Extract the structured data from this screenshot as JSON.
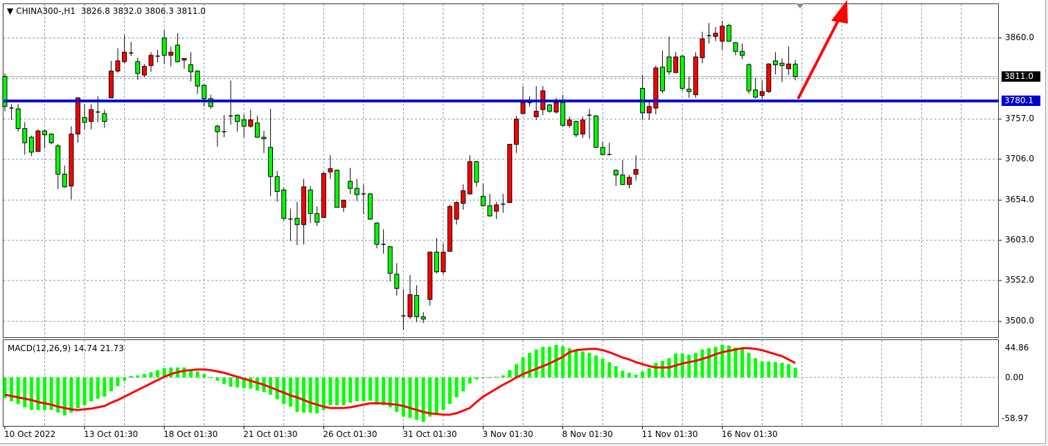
{
  "header": {
    "symbol": "CHINA300-,H1",
    "open": "3826.8",
    "high": "3832.0",
    "low": "3806.3",
    "close": "3811.0"
  },
  "price_axis": {
    "labels": [
      "3860.0",
      "3757.0",
      "3706.0",
      "3654.0",
      "3603.0",
      "3552.0",
      "3500.0"
    ],
    "current_price": "3811.0",
    "horizontal_line": "3780.1"
  },
  "macd": {
    "title": "MACD(12,26,9)",
    "main_value": "14.74",
    "signal_value": "21.73",
    "axis_labels": [
      "44.86",
      "0.00",
      "-58.97"
    ]
  },
  "time_axis": {
    "labels": [
      "10 Oct 2022",
      "13 Oct 01:30",
      "18 Oct 01:30",
      "21 Oct 01:30",
      "26 Oct 01:30",
      "31 Oct 01:30",
      "3 Nov 01:30",
      "8 Nov 01:30",
      "11 Nov 01:30",
      "16 Nov 01:30"
    ]
  },
  "colors": {
    "bull_candle": "#ff0000",
    "bear_candle": "#00ff00",
    "horizontal_line": "#0000d0",
    "arrow": "#ff0000",
    "macd_histogram": "#00ff00",
    "macd_signal": "#ff0000",
    "grid": "#8090a0"
  },
  "chart_data": [
    {
      "type": "candlestick",
      "title": "CHINA300-,H1",
      "ylim": [
        3479,
        3903
      ],
      "grid": true,
      "horizontal_line": 3780.1,
      "current_price": 3811.0,
      "candles_ohlc": [
        [
          3811,
          3815,
          3767,
          3773
        ],
        [
          3771,
          3776,
          3756,
          3771
        ],
        [
          3770,
          3776,
          3741,
          3745
        ],
        [
          3745,
          3753,
          3712,
          3727
        ],
        [
          3734,
          3736,
          3710,
          3715
        ],
        [
          3716,
          3744,
          3716,
          3742
        ],
        [
          3742,
          3744,
          3720,
          3737
        ],
        [
          3738,
          3739,
          3725,
          3727
        ],
        [
          3723,
          3725,
          3668,
          3687
        ],
        [
          3687,
          3698,
          3670,
          3671
        ],
        [
          3672,
          3748,
          3655,
          3738
        ],
        [
          3738,
          3785,
          3727,
          3784
        ],
        [
          3759,
          3776,
          3744,
          3753
        ],
        [
          3754,
          3776,
          3744,
          3769
        ],
        [
          3766,
          3786,
          3753,
          3766
        ],
        [
          3764,
          3769,
          3746,
          3754
        ],
        [
          3784,
          3831,
          3784,
          3818
        ],
        [
          3818,
          3847,
          3816,
          3831
        ],
        [
          3830,
          3864,
          3828,
          3842
        ],
        [
          3841,
          3855,
          3837,
          3841
        ],
        [
          3830,
          3835,
          3807,
          3815
        ],
        [
          3813,
          3827,
          3810,
          3824
        ],
        [
          3825,
          3842,
          3817,
          3838
        ],
        [
          3837,
          3845,
          3829,
          3837
        ],
        [
          3860,
          3870,
          3827,
          3838
        ],
        [
          3838,
          3849,
          3824,
          3842
        ],
        [
          3851,
          3866,
          3829,
          3830
        ],
        [
          3832,
          3834,
          3821,
          3834
        ],
        [
          3826,
          3842,
          3805,
          3817
        ],
        [
          3818,
          3819,
          3789,
          3799
        ],
        [
          3800,
          3801,
          3773,
          3783
        ],
        [
          3783,
          3788,
          3770,
          3773
        ],
        [
          3748,
          3750,
          3722,
          3741
        ],
        [
          3741,
          3762,
          3734,
          3741
        ],
        [
          3761,
          3806,
          3750,
          3761
        ],
        [
          3762,
          3763,
          3741,
          3754
        ],
        [
          3756,
          3763,
          3734,
          3748
        ],
        [
          3748,
          3769,
          3746,
          3756
        ],
        [
          3752,
          3761,
          3733,
          3734
        ],
        [
          3734,
          3742,
          3714,
          3732
        ],
        [
          3721,
          3770,
          3659,
          3684
        ],
        [
          3684,
          3691,
          3652,
          3665
        ],
        [
          3667,
          3670,
          3628,
          3631
        ],
        [
          3630,
          3643,
          3602,
          3630
        ],
        [
          3631,
          3652,
          3597,
          3623
        ],
        [
          3623,
          3681,
          3598,
          3671
        ],
        [
          3667,
          3672,
          3625,
          3637
        ],
        [
          3637,
          3646,
          3621,
          3626
        ],
        [
          3632,
          3690,
          3632,
          3688
        ],
        [
          3690,
          3711,
          3681,
          3694
        ],
        [
          3692,
          3693,
          3645,
          3645
        ],
        [
          3645,
          3654,
          3639,
          3654
        ],
        [
          3678,
          3695,
          3662,
          3669
        ],
        [
          3669,
          3681,
          3653,
          3661
        ],
        [
          3662,
          3674,
          3636,
          3662
        ],
        [
          3662,
          3663,
          3629,
          3630
        ],
        [
          3625,
          3626,
          3593,
          3598
        ],
        [
          3598,
          3617,
          3586,
          3598
        ],
        [
          3595,
          3596,
          3551,
          3561
        ],
        [
          3560,
          3574,
          3533,
          3542
        ],
        [
          3507,
          3541,
          3489,
          3507
        ],
        [
          3506,
          3559,
          3503,
          3534
        ],
        [
          3533,
          3546,
          3499,
          3506
        ],
        [
          3506,
          3512,
          3498,
          3503
        ],
        [
          3528,
          3589,
          3520,
          3588
        ],
        [
          3588,
          3606,
          3561,
          3563
        ],
        [
          3563,
          3599,
          3560,
          3588
        ],
        [
          3589,
          3648,
          3589,
          3646
        ],
        [
          3630,
          3653,
          3623,
          3651
        ],
        [
          3650,
          3674,
          3642,
          3666
        ],
        [
          3662,
          3711,
          3661,
          3703
        ],
        [
          3703,
          3704,
          3671,
          3677
        ],
        [
          3659,
          3675,
          3646,
          3647
        ],
        [
          3647,
          3662,
          3633,
          3634
        ],
        [
          3640,
          3652,
          3630,
          3648
        ],
        [
          3648,
          3662,
          3638,
          3649
        ],
        [
          3651,
          3725,
          3651,
          3725
        ],
        [
          3725,
          3761,
          3714,
          3757
        ],
        [
          3764,
          3799,
          3763,
          3778
        ],
        [
          3778,
          3786,
          3773,
          3778
        ],
        [
          3760,
          3799,
          3756,
          3767
        ],
        [
          3769,
          3799,
          3762,
          3793
        ],
        [
          3775,
          3776,
          3765,
          3767
        ],
        [
          3766,
          3784,
          3764,
          3778
        ],
        [
          3778,
          3788,
          3747,
          3749
        ],
        [
          3749,
          3760,
          3746,
          3756
        ],
        [
          3754,
          3755,
          3734,
          3737
        ],
        [
          3738,
          3760,
          3733,
          3756
        ],
        [
          3762,
          3770,
          3732,
          3762
        ],
        [
          3761,
          3762,
          3720,
          3721
        ],
        [
          3721,
          3728,
          3711,
          3712
        ],
        [
          3712,
          3727,
          3711,
          3711
        ],
        [
          3692,
          3693,
          3672,
          3686
        ],
        [
          3686,
          3705,
          3673,
          3674
        ],
        [
          3674,
          3686,
          3669,
          3683
        ],
        [
          3687,
          3711,
          3679,
          3693
        ],
        [
          3796,
          3813,
          3756,
          3765
        ],
        [
          3765,
          3779,
          3756,
          3773
        ],
        [
          3771,
          3825,
          3763,
          3822
        ],
        [
          3823,
          3844,
          3790,
          3793
        ],
        [
          3836,
          3862,
          3813,
          3817
        ],
        [
          3816,
          3842,
          3816,
          3836
        ],
        [
          3837,
          3838,
          3793,
          3796
        ],
        [
          3795,
          3811,
          3784,
          3792
        ],
        [
          3788,
          3842,
          3784,
          3836
        ],
        [
          3835,
          3868,
          3828,
          3859
        ],
        [
          3863,
          3879,
          3853,
          3863
        ],
        [
          3862,
          3874,
          3856,
          3866
        ],
        [
          3856,
          3882,
          3845,
          3875
        ],
        [
          3876,
          3878,
          3856,
          3856
        ],
        [
          3854,
          3855,
          3838,
          3843
        ],
        [
          3843,
          3853,
          3833,
          3838
        ],
        [
          3826,
          3828,
          3789,
          3793
        ],
        [
          3794,
          3809,
          3783,
          3785
        ],
        [
          3787,
          3806,
          3782,
          3792
        ],
        [
          3792,
          3828,
          3790,
          3827
        ],
        [
          3831,
          3842,
          3814,
          3826
        ],
        [
          3828,
          3834,
          3804,
          3825
        ],
        [
          3821,
          3849,
          3813,
          3827
        ],
        [
          3826.8,
          3832.0,
          3806.3,
          3811.0
        ]
      ]
    },
    {
      "type": "bar",
      "title": "MACD(12,26,9)",
      "ylim": [
        -73,
        56.3
      ],
      "histogram": [
        -31,
        -36,
        -40,
        -45,
        -49,
        -49,
        -49,
        -49,
        -53,
        -57,
        -53,
        -46,
        -42,
        -36,
        -32,
        -29,
        -21,
        -13,
        -5,
        2,
        3,
        5,
        8,
        11,
        14,
        15,
        15,
        15,
        11,
        9,
        5,
        0,
        -5,
        -10,
        -14,
        -15,
        -16,
        -17,
        -20,
        -22,
        -26,
        -33,
        -40,
        -44,
        -52,
        -53,
        -53,
        -54,
        -49,
        -42,
        -42,
        -42,
        -38,
        -36,
        -36,
        -35,
        -41,
        -42,
        -45,
        -52,
        -59,
        -61,
        -64,
        -67,
        -59,
        -55,
        -49,
        -40,
        -30,
        -21,
        -9,
        -3,
        -1,
        0,
        1,
        3,
        11,
        20,
        30,
        37,
        42,
        46,
        46,
        49,
        47,
        44,
        42,
        39,
        37,
        33,
        28,
        23,
        17,
        10,
        7,
        4,
        9,
        14,
        22,
        25,
        29,
        36,
        36,
        34,
        37,
        42,
        44,
        46,
        49,
        48,
        45,
        45,
        37,
        29,
        24,
        24,
        23,
        22,
        20,
        14.74
      ],
      "signal": [
        -26,
        -28,
        -30,
        -32,
        -34,
        -37,
        -39,
        -41,
        -44,
        -46,
        -48,
        -49,
        -48,
        -47,
        -45,
        -43,
        -38,
        -34,
        -29,
        -24,
        -19,
        -14,
        -9,
        -4,
        1,
        5,
        8,
        10,
        11,
        12,
        12,
        11,
        9,
        7,
        4,
        1,
        -2,
        -5,
        -8,
        -11,
        -15,
        -19,
        -23,
        -27,
        -30,
        -34,
        -38,
        -41,
        -44,
        -46,
        -46,
        -46,
        -45,
        -43,
        -41,
        -39,
        -39,
        -39,
        -40,
        -41,
        -43,
        -46,
        -49,
        -52,
        -54,
        -55,
        -56,
        -56,
        -54,
        -50,
        -46,
        -37,
        -29,
        -23,
        -17,
        -11,
        -6,
        0,
        5,
        9,
        13,
        17,
        21,
        26,
        31,
        38,
        41,
        42,
        43,
        43,
        41,
        38,
        34,
        30,
        27,
        23,
        20,
        17,
        15,
        15,
        15,
        18,
        21,
        23,
        25,
        28,
        31,
        35,
        38,
        40,
        42,
        44,
        44,
        43,
        41,
        38,
        35,
        32,
        27,
        21.73
      ]
    }
  ]
}
